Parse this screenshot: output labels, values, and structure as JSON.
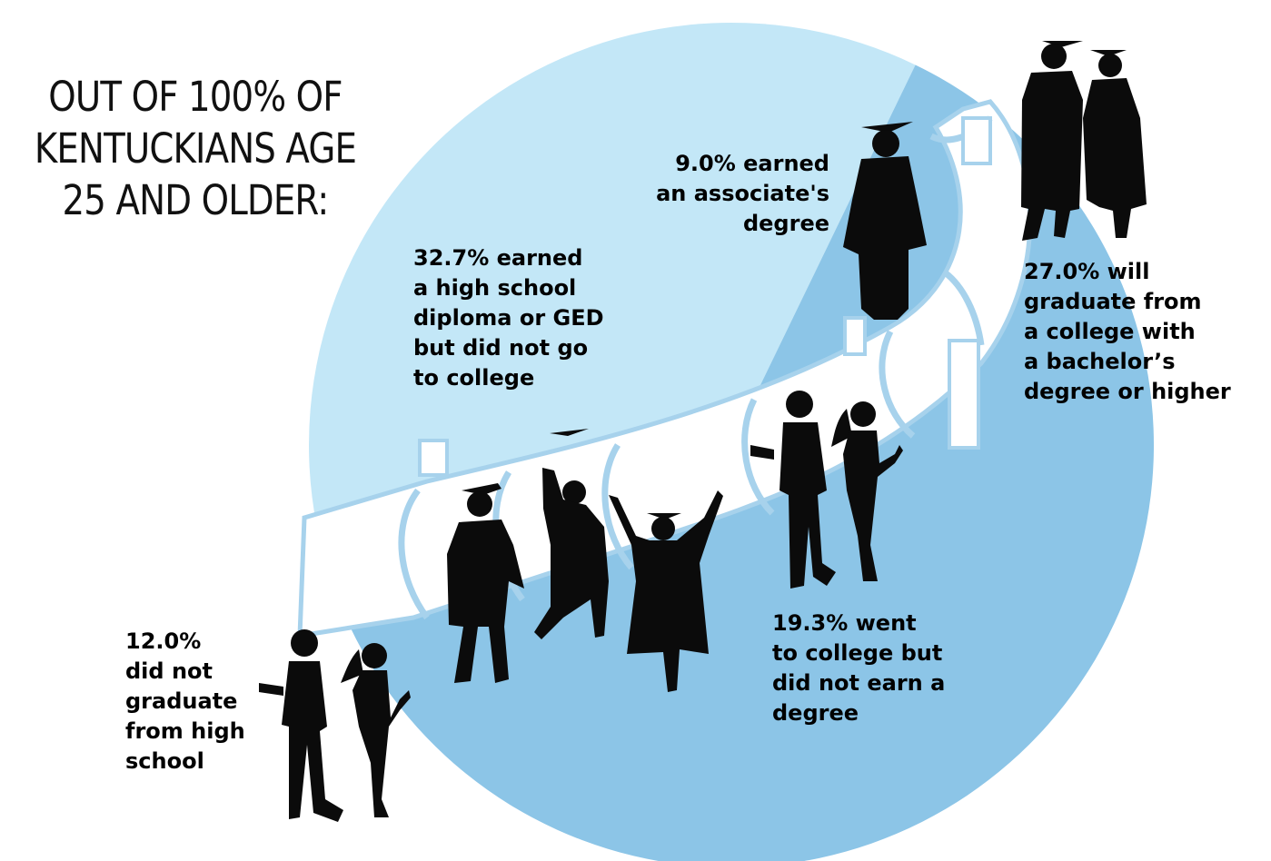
{
  "title_lines": [
    "OUT OF 100% OF",
    "KENTUCKIANS AGE",
    "25 AND OLDER:"
  ],
  "colors": {
    "pie_light": "#c3e7f7",
    "pie_dark": "#8cc5e7",
    "tube": "#ffffff",
    "tube_shade": "#a7d2ec",
    "silhouette": "#0b0b0b"
  },
  "chart_data": {
    "type": "pie",
    "title": "OUT OF 100% OF KENTUCKIANS AGE 25 AND OLDER:",
    "slices": [
      {
        "label": "12.0% did not graduate from high school",
        "value": 12.0,
        "color": "#ffffff"
      },
      {
        "label": "32.7% earned a high school diploma or GED but did not go to college",
        "value": 32.7,
        "color": "#c3e7f7"
      },
      {
        "label": "19.3% went to college but did not earn a degree",
        "value": 19.3,
        "color": "#8cc5e7"
      },
      {
        "label": "9.0% earned an associate's degree",
        "value": 9.0,
        "color": "#c3e7f7"
      },
      {
        "label": "27.0% will graduate from a college with a bachelor’s degree or higher",
        "value": 27.0,
        "color": "#8cc5e7"
      }
    ]
  },
  "labels": {
    "no_hs": "12.0%\ndid not\ngraduate\nfrom high\nschool",
    "hs": "32.7% earned\na high school\ndiploma or GED\nbut did not go\nto college",
    "some_college": "19.3% went\nto college but\ndid not earn a\ndegree",
    "associate": "9.0% earned\nan associate's\ndegree",
    "bachelor": "27.0% will\ngraduate from\na college with\na bachelor’s\ndegree or higher"
  }
}
